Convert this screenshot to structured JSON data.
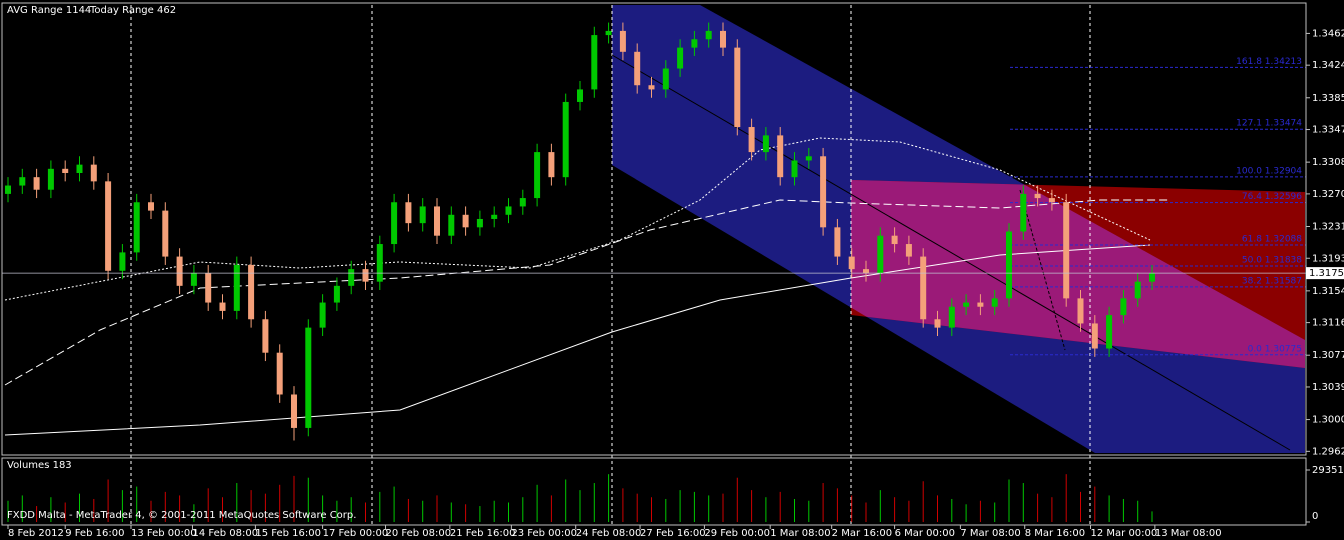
{
  "header": {
    "indicators": [
      "AVG Range 1144",
      "Today Range 462"
    ],
    "footer": "FXDD Malta - MetaTrader 4, © 2001-2011 MetaQuotes Software Corp."
  },
  "chart_data": {
    "type": "candlestick",
    "up_color": "#00c800",
    "down_color": "#f4a07a",
    "open": [
      1.327,
      1.328,
      1.329,
      1.3275,
      1.33,
      1.3295,
      1.3305,
      1.3285,
      1.3178,
      1.32,
      1.326,
      1.325,
      1.3195,
      1.316,
      1.3175,
      1.314,
      1.313,
      1.3185,
      1.312,
      1.308,
      1.303,
      1.299,
      1.311,
      1.314,
      1.316,
      1.318,
      1.3165,
      1.321,
      1.326,
      1.3235,
      1.3255,
      1.322,
      1.3245,
      1.323,
      1.324,
      1.3245,
      1.3255,
      1.3265,
      1.332,
      1.329,
      1.338,
      1.3395,
      1.346,
      1.3465,
      1.344,
      1.34,
      1.3395,
      1.342,
      1.3445,
      1.3455,
      1.3465,
      1.3445,
      1.335,
      1.332,
      1.334,
      1.329,
      1.331,
      1.3315,
      1.323,
      1.3195,
      1.318,
      1.3175,
      1.322,
      1.321,
      1.3195,
      1.312,
      1.311,
      1.3135,
      1.314,
      1.3135,
      1.3145,
      1.3225,
      1.327,
      1.3265,
      1.326,
      1.3145,
      1.3115,
      1.3085,
      1.3125,
      1.3145,
      1.3165
    ],
    "high": [
      1.329,
      1.33,
      1.33,
      1.331,
      1.331,
      1.3315,
      1.3315,
      1.3295,
      1.321,
      1.327,
      1.327,
      1.326,
      1.3205,
      1.3185,
      1.3185,
      1.315,
      1.3195,
      1.3195,
      1.313,
      1.309,
      1.304,
      1.312,
      1.315,
      1.317,
      1.319,
      1.319,
      1.322,
      1.327,
      1.327,
      1.3265,
      1.3265,
      1.3255,
      1.3255,
      1.325,
      1.3255,
      1.3265,
      1.3275,
      1.333,
      1.333,
      1.339,
      1.3405,
      1.347,
      1.3475,
      1.3475,
      1.345,
      1.341,
      1.343,
      1.3455,
      1.3465,
      1.3475,
      1.3475,
      1.3455,
      1.336,
      1.335,
      1.335,
      1.332,
      1.3325,
      1.3325,
      1.324,
      1.3205,
      1.319,
      1.323,
      1.323,
      1.322,
      1.3205,
      1.313,
      1.3145,
      1.315,
      1.315,
      1.3155,
      1.3235,
      1.328,
      1.328,
      1.3275,
      1.327,
      1.3155,
      1.3125,
      1.3135,
      1.3155,
      1.3175,
      1.3185
    ],
    "low": [
      1.326,
      1.327,
      1.3265,
      1.3265,
      1.3285,
      1.3285,
      1.3275,
      1.3168,
      1.3168,
      1.319,
      1.324,
      1.3185,
      1.315,
      1.315,
      1.313,
      1.312,
      1.312,
      1.311,
      1.307,
      1.302,
      1.2975,
      1.298,
      1.31,
      1.313,
      1.315,
      1.3155,
      1.3155,
      1.32,
      1.3225,
      1.3225,
      1.321,
      1.321,
      1.322,
      1.322,
      1.323,
      1.3235,
      1.3245,
      1.3255,
      1.328,
      1.328,
      1.337,
      1.3385,
      1.345,
      1.343,
      1.339,
      1.3385,
      1.3385,
      1.341,
      1.3435,
      1.3445,
      1.3435,
      1.334,
      1.331,
      1.331,
      1.328,
      1.328,
      1.33,
      1.322,
      1.3185,
      1.317,
      1.3165,
      1.3165,
      1.32,
      1.3185,
      1.311,
      1.31,
      1.31,
      1.3125,
      1.3125,
      1.3125,
      1.3135,
      1.3215,
      1.3255,
      1.325,
      1.3135,
      1.3105,
      1.3075,
      1.3075,
      1.3115,
      1.3135,
      1.3155
    ],
    "close": [
      1.328,
      1.329,
      1.3275,
      1.33,
      1.3295,
      1.3305,
      1.3285,
      1.3178,
      1.32,
      1.326,
      1.325,
      1.3195,
      1.316,
      1.3175,
      1.314,
      1.313,
      1.3185,
      1.312,
      1.308,
      1.303,
      1.299,
      1.311,
      1.314,
      1.316,
      1.318,
      1.3165,
      1.321,
      1.326,
      1.3235,
      1.3255,
      1.322,
      1.3245,
      1.323,
      1.324,
      1.3245,
      1.3255,
      1.3265,
      1.332,
      1.329,
      1.338,
      1.3395,
      1.346,
      1.3465,
      1.344,
      1.34,
      1.3395,
      1.342,
      1.3445,
      1.3455,
      1.3465,
      1.3445,
      1.335,
      1.332,
      1.334,
      1.329,
      1.331,
      1.3315,
      1.323,
      1.3195,
      1.318,
      1.3175,
      1.322,
      1.321,
      1.3195,
      1.312,
      1.311,
      1.3135,
      1.314,
      1.3135,
      1.3145,
      1.3225,
      1.327,
      1.3265,
      1.326,
      1.3145,
      1.3115,
      1.3085,
      1.3125,
      1.3145,
      1.3165,
      1.3175
    ],
    "xlim": [
      0,
      80
    ],
    "xticks": [
      {
        "value": 0,
        "label": "8 Feb 2012"
      },
      {
        "value": 4,
        "label": "9 Feb 16:00"
      },
      {
        "value": 8.6,
        "label": "13 Feb 00:00"
      },
      {
        "value": 12.9,
        "label": "14 Feb 08:00"
      },
      {
        "value": 17.3,
        "label": "15 Feb 16:00"
      },
      {
        "value": 22,
        "label": "17 Feb 00:00"
      },
      {
        "value": 26.4,
        "label": "20 Feb 08:00"
      },
      {
        "value": 30.9,
        "label": "21 Feb 16:00"
      },
      {
        "value": 35.2,
        "label": "23 Feb 00:00"
      },
      {
        "value": 39.7,
        "label": "24 Feb 08:00"
      },
      {
        "value": 44.2,
        "label": "27 Feb 16:00"
      },
      {
        "value": 48.7,
        "label": "29 Feb 00:00"
      },
      {
        "value": 53.3,
        "label": "1 Mar 08:00"
      },
      {
        "value": 57.6,
        "label": "2 Mar 16:00"
      },
      {
        "value": 62,
        "label": "6 Mar 00:00"
      },
      {
        "value": 66.6,
        "label": "7 Mar 08:00"
      },
      {
        "value": 71.1,
        "label": "8 Mar 16:00"
      },
      {
        "value": 75.7,
        "label": "12 Mar 00:00"
      },
      {
        "value": 80.2,
        "label": "13 Mar 08:00"
      }
    ],
    "ylim": [
      1.296,
      1.3496
    ],
    "yticks": [
      {
        "value": 1.3462,
        "label": "1.34620"
      },
      {
        "value": 1.3424,
        "label": "1.34240"
      },
      {
        "value": 1.3385,
        "label": "1.33850"
      },
      {
        "value": 1.3347,
        "label": "1.33470"
      },
      {
        "value": 1.3308,
        "label": "1.33080"
      },
      {
        "value": 1.327,
        "label": "1.32700"
      },
      {
        "value": 1.3231,
        "label": "1.32310"
      },
      {
        "value": 1.3193,
        "label": "1.31930"
      },
      {
        "value": 1.3154,
        "label": "1.31540"
      },
      {
        "value": 1.3116,
        "label": "1.31160"
      },
      {
        "value": 1.3077,
        "label": "1.30770"
      },
      {
        "value": 1.3039,
        "label": "1.30390"
      },
      {
        "value": 1.3,
        "label": "1.30000"
      },
      {
        "value": 1.2962,
        "label": "1.29620"
      }
    ],
    "last_price": 1.31752,
    "fib_color": "#2a2ad0",
    "fib_levels": [
      {
        "value": 1.34213,
        "label": "161.8 1.34213"
      },
      {
        "value": 1.33474,
        "label": "127.1 1.33474"
      },
      {
        "value": 1.32904,
        "label": "100.0 1.32904"
      },
      {
        "value": 1.32596,
        "label": "76.4 1.32596"
      },
      {
        "value": 1.32088,
        "label": "61.8 1.32088"
      },
      {
        "value": 1.31838,
        "label": "50.0 1.31838"
      },
      {
        "value": 1.31587,
        "label": "38.2 1.31587"
      },
      {
        "value": 1.30775,
        "label": "0.0 1.30775"
      }
    ],
    "volume": {
      "title": "Volumes 183",
      "up_color": "#00c800",
      "down_color": "#d00000",
      "values": [
        12000,
        15000,
        9000,
        14000,
        11000,
        16000,
        13000,
        24000,
        18000,
        20000,
        12000,
        17000,
        15000,
        10000,
        19000,
        14000,
        22000,
        18000,
        16000,
        21000,
        26000,
        25000,
        15000,
        12000,
        14000,
        11000,
        17000,
        20000,
        13000,
        12000,
        15000,
        11000,
        10000,
        9000,
        12000,
        11000,
        14000,
        21000,
        15000,
        24000,
        18000,
        22000,
        27000,
        19000,
        16000,
        14000,
        13000,
        18000,
        17000,
        15000,
        16000,
        25000,
        18000,
        14000,
        17000,
        13000,
        12000,
        22000,
        19000,
        15000,
        11000,
        18000,
        14000,
        12000,
        23000,
        15000,
        13000,
        10000,
        12000,
        11000,
        24000,
        22000,
        16000,
        14000,
        27000,
        17000,
        20000,
        15000,
        13000,
        12000,
        6000
      ],
      "ylim": [
        0,
        29351
      ],
      "yticks": [
        29351,
        0
      ]
    }
  }
}
